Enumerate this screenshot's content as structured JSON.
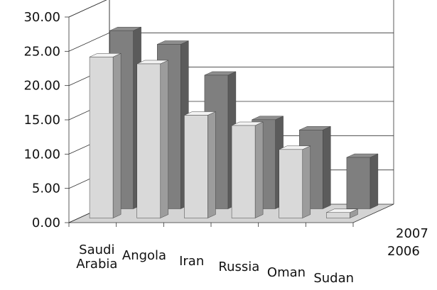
{
  "chart_data": {
    "type": "bar",
    "categories": [
      "Saudi Arabia",
      "Angola",
      "Iran",
      "Russia",
      "Oman",
      "Sudan"
    ],
    "category_label_lines": [
      [
        "Saudi",
        "Arabia"
      ],
      [
        "Angola"
      ],
      [
        "Iran"
      ],
      [
        "Russia"
      ],
      [
        "Oman"
      ],
      [
        "Sudan"
      ]
    ],
    "series": [
      {
        "name": "2006",
        "values": [
          23.5,
          22.5,
          15.0,
          13.5,
          10.0,
          0.8
        ],
        "color": "#d9d9d9"
      },
      {
        "name": "2007",
        "values": [
          26.0,
          24.0,
          19.5,
          13.0,
          11.5,
          7.5
        ],
        "color": "#7f7f7f"
      }
    ],
    "ylim": [
      0,
      30
    ],
    "y_ticks": [
      "0.00",
      "5.00",
      "10.00",
      "15.00",
      "20.00",
      "25.00",
      "30.00"
    ],
    "depth_labels": [
      "2007",
      "2006"
    ],
    "grid": true,
    "three_d": true,
    "title": "",
    "xlabel": "",
    "ylabel": ""
  }
}
